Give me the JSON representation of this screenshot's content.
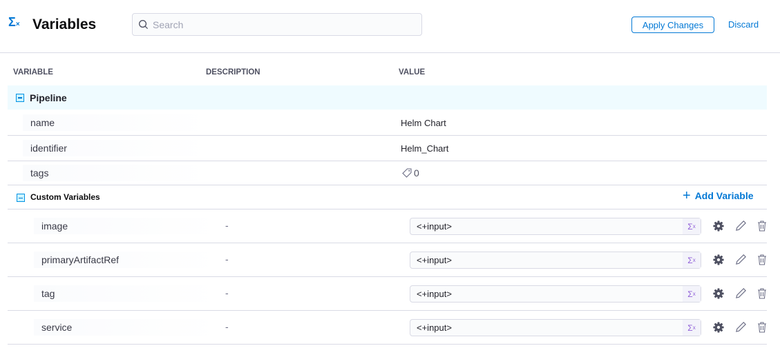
{
  "header": {
    "title": "Variables",
    "search_placeholder": "Search",
    "apply_label": "Apply Changes",
    "discard_label": "Discard"
  },
  "columns": {
    "variable": "VARIABLE",
    "description": "DESCRIPTION",
    "value": "VALUE"
  },
  "pipeline": {
    "label": "Pipeline",
    "rows": [
      {
        "name": "name",
        "value": "Helm Chart"
      },
      {
        "name": "identifier",
        "value": "Helm_Chart"
      },
      {
        "name": "tags",
        "value": "0"
      }
    ]
  },
  "custom": {
    "label": "Custom Variables",
    "add_label": "Add Variable",
    "rows": [
      {
        "name": "image",
        "description": "-",
        "value": "<+input>"
      },
      {
        "name": "primaryArtifactRef",
        "description": "-",
        "value": "<+input>"
      },
      {
        "name": "tag",
        "description": "-",
        "value": "<+input>"
      },
      {
        "name": "service",
        "description": "-",
        "value": "<+input>"
      }
    ]
  },
  "colors": {
    "accent": "#0278d5",
    "expression": "#9160d8"
  }
}
